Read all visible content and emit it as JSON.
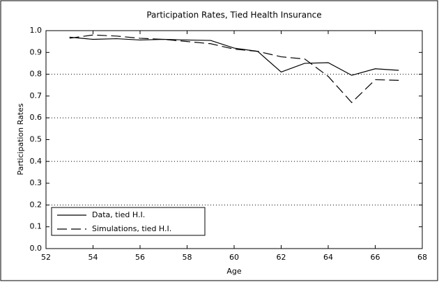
{
  "chart_data": {
    "type": "line",
    "title": "Participation Rates, Tied Health Insurance",
    "x_label": "Age",
    "y_label": "Participation Rates",
    "x": [
      53,
      54,
      55,
      56,
      57,
      58,
      59,
      60,
      61,
      62,
      63,
      64,
      65,
      66,
      67
    ],
    "series": [
      {
        "name": "Data, tied H.I.",
        "color": "#000000",
        "dash": "none",
        "values": [
          0.97,
          0.96,
          0.963,
          0.957,
          0.96,
          0.957,
          0.955,
          0.92,
          0.905,
          0.81,
          0.85,
          0.853,
          0.795,
          0.825,
          0.818
        ]
      },
      {
        "name": "Simulations, tied H.I.",
        "color": "#000000",
        "dash": "14 6",
        "values": [
          0.965,
          0.98,
          0.975,
          0.965,
          0.96,
          0.95,
          0.94,
          0.915,
          0.905,
          0.88,
          0.87,
          0.79,
          0.67,
          0.775,
          0.772
        ]
      }
    ],
    "xlim": [
      52,
      68
    ],
    "xticks": [
      52,
      54,
      56,
      58,
      60,
      62,
      64,
      66,
      68
    ],
    "ylim": [
      0,
      1
    ],
    "yticks": [
      {
        "value": 0,
        "label": "0.0"
      },
      0.1,
      0.2,
      0.3,
      0.4,
      0.5,
      0.6,
      0.7,
      0.8,
      0.9,
      {
        "value": 1,
        "label": "1.0"
      }
    ],
    "gridlines": [
      0.2,
      0.4,
      0.6,
      0.8
    ],
    "legend": "lower left"
  }
}
